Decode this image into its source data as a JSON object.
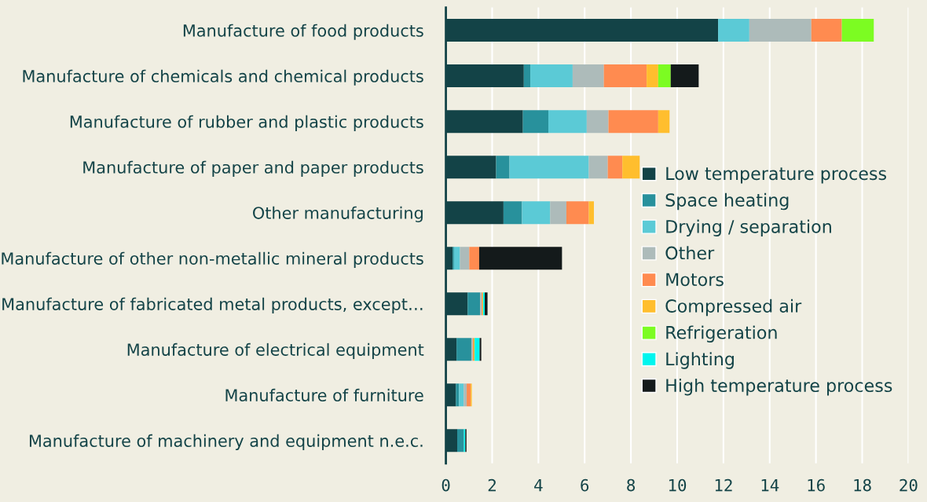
{
  "chart_data": {
    "type": "bar",
    "orientation": "horizontal",
    "stacked": true,
    "categories": [
      "Manufacture of food products",
      "Manufacture of chemicals and chemical products",
      "Manufacture of rubber and plastic products",
      "Manufacture of paper and paper products",
      "Other manufacturing",
      "Manufacture of other non-metallic mineral products",
      "Manufacture of fabricated metal products, except…",
      "Manufacture of electrical equipment",
      "Manufacture of furniture",
      "Manufacture of machinery and equipment n.e.c."
    ],
    "series": [
      {
        "name": "Low temperature process",
        "color": "#134347",
        "values": [
          11.77,
          3.37,
          3.33,
          2.17,
          2.49,
          0.29,
          0.94,
          0.46,
          0.43,
          0.49
        ]
      },
      {
        "name": "Space heating",
        "color": "#28919c",
        "values": [
          null,
          0.28,
          1.1,
          0.58,
          0.8,
          0.06,
          0.54,
          0.64,
          0.14,
          0.29
        ]
      },
      {
        "name": "Drying / separation",
        "color": "#5bcad6",
        "values": [
          1.35,
          1.83,
          1.66,
          3.43,
          1.22,
          0.26,
          null,
          null,
          0.2,
          null
        ]
      },
      {
        "name": "Other",
        "color": "#adbbba",
        "values": [
          2.68,
          1.35,
          0.94,
          0.82,
          0.7,
          0.4,
          0.07,
          0.06,
          0.13,
          null
        ]
      },
      {
        "name": "Motors",
        "color": "#ff8b50",
        "values": [
          1.32,
          1.85,
          2.15,
          0.63,
          0.97,
          0.43,
          0.03,
          0.04,
          0.17,
          null
        ]
      },
      {
        "name": "Compressed air",
        "color": "#ffbe2e",
        "values": [
          null,
          0.5,
          0.49,
          0.75,
          0.22,
          null,
          0.03,
          0.04,
          0.05,
          null
        ]
      },
      {
        "name": "Refrigeration",
        "color": "#7cfc22",
        "values": [
          1.38,
          0.54,
          null,
          null,
          null,
          null,
          null,
          null,
          null,
          null
        ]
      },
      {
        "name": "Lighting",
        "color": "#00f5ee",
        "values": [
          null,
          null,
          null,
          null,
          null,
          null,
          0.07,
          0.22,
          null,
          0.06
        ]
      },
      {
        "name": "High temperature process",
        "color": "#141a1b",
        "values": [
          null,
          1.21,
          null,
          null,
          null,
          3.58,
          0.12,
          0.07,
          null,
          0.05
        ]
      }
    ],
    "xlim": [
      0,
      20
    ],
    "xticks": [
      0,
      2,
      4,
      6,
      8,
      10,
      12,
      14,
      16,
      18,
      20
    ],
    "grid": "x",
    "legend": "right"
  }
}
